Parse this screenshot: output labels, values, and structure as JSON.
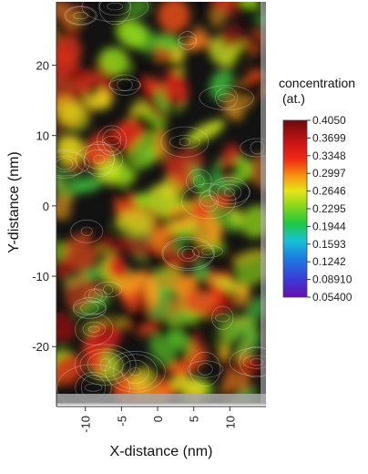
{
  "chart_data": {
    "type": "heatmap",
    "title": "",
    "xlabel": "X-distance (nm)",
    "ylabel": "Y-distance (nm)",
    "x_ticks": [
      -10,
      -5,
      0,
      5,
      10
    ],
    "y_ticks": [
      20,
      10,
      0,
      -10,
      -20
    ],
    "xlim": [
      -14,
      15
    ],
    "ylim": [
      -28,
      29
    ],
    "colorbar": {
      "title_line1": "concentration",
      "title_line2": "(at.)",
      "min": 0.054,
      "max": 0.405,
      "tick_labels": [
        "0.4050",
        "0.3699",
        "0.3348",
        "0.2997",
        "0.2646",
        "0.2295",
        "0.1944",
        "0.1593",
        "0.1242",
        "0.08910",
        "0.05400"
      ]
    },
    "grid": false,
    "has_contour_lines": true
  }
}
